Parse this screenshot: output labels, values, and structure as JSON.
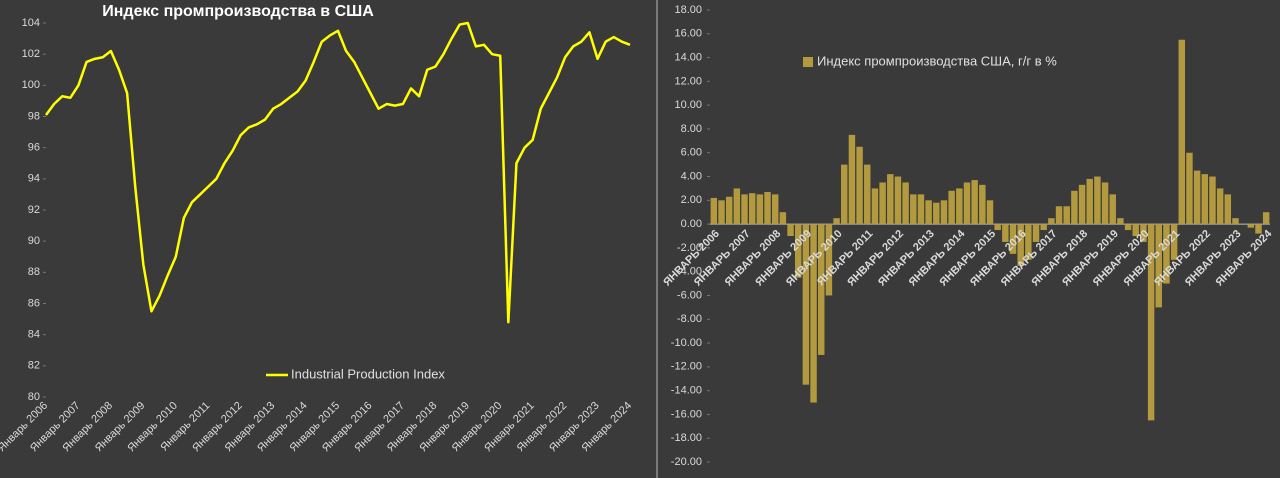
{
  "chart_data": [
    {
      "type": "line",
      "title": "Индекс промпроизводства в США",
      "categories": [
        "Январь 2006",
        null,
        null,
        null,
        "Январь 2007",
        null,
        null,
        null,
        "Январь 2008",
        null,
        null,
        null,
        "Январь 2009",
        null,
        null,
        null,
        "Январь 2010",
        null,
        null,
        null,
        "Январь 2011",
        null,
        null,
        null,
        "Январь 2012",
        null,
        null,
        null,
        "Январь 2013",
        null,
        null,
        null,
        "Январь 2014",
        null,
        null,
        null,
        "Январь 2015",
        null,
        null,
        null,
        "Январь 2016",
        null,
        null,
        null,
        "Январь 2017",
        null,
        null,
        null,
        "Январь 2018",
        null,
        null,
        null,
        "Январь 2019",
        null,
        null,
        null,
        "Январь 2020",
        null,
        null,
        null,
        "Январь 2021",
        null,
        null,
        null,
        "Январь 2022",
        null,
        null,
        null,
        "Январь 2023",
        null,
        null,
        null,
        "Январь 2024"
      ],
      "series": [
        {
          "name": "Industrial Production Index",
          "color": "#ffff00",
          "values": [
            98.1,
            98.8,
            99.3,
            99.2,
            100.0,
            101.5,
            101.7,
            101.8,
            102.2,
            101.0,
            99.5,
            93.5,
            88.5,
            85.5,
            86.5,
            87.8,
            89.0,
            91.5,
            92.5,
            93.0,
            93.5,
            94.0,
            95.0,
            95.8,
            96.8,
            97.3,
            97.5,
            97.8,
            98.5,
            98.8,
            99.2,
            99.6,
            100.3,
            101.5,
            102.8,
            103.2,
            103.5,
            102.2,
            101.5,
            100.5,
            99.5,
            98.5,
            98.8,
            98.7,
            98.8,
            99.8,
            99.3,
            101.0,
            101.2,
            102.0,
            103.0,
            103.9,
            104.0,
            102.5,
            102.6,
            102.0,
            101.9,
            84.8,
            95.0,
            96.0,
            96.5,
            98.5,
            99.5,
            100.5,
            101.8,
            102.5,
            102.8,
            103.4,
            101.7,
            102.8,
            103.1,
            102.8,
            102.6
          ]
        }
      ],
      "ylim": [
        80,
        104
      ],
      "yticks": [
        80,
        82,
        84,
        86,
        88,
        90,
        92,
        94,
        96,
        98,
        100,
        102,
        104
      ],
      "legend": "bottom"
    },
    {
      "type": "bar",
      "categories": [
        "ЯНВАРЬ 2006",
        null,
        null,
        null,
        "ЯНВАРЬ 2007",
        null,
        null,
        null,
        "ЯНВАРЬ 2008",
        null,
        null,
        null,
        "ЯНВАРЬ 2009",
        null,
        null,
        null,
        "ЯНВАРЬ 2010",
        null,
        null,
        null,
        "ЯНВАРЬ 2011",
        null,
        null,
        null,
        "ЯНВАРЬ 2012",
        null,
        null,
        null,
        "ЯНВАРЬ 2013",
        null,
        null,
        null,
        "ЯНВАРЬ 2014",
        null,
        null,
        null,
        "ЯНВАРЬ 2015",
        null,
        null,
        null,
        "ЯНВАРЬ 2016",
        null,
        null,
        null,
        "ЯНВАРЬ 2017",
        null,
        null,
        null,
        "ЯНВАРЬ 2018",
        null,
        null,
        null,
        "ЯНВАРЬ 2019",
        null,
        null,
        null,
        "ЯНВАРЬ 2020",
        null,
        null,
        null,
        "ЯНВАРЬ 2021",
        null,
        null,
        null,
        "ЯНВАРЬ 2022",
        null,
        null,
        null,
        "ЯНВАРЬ 2023",
        null,
        null,
        null,
        "ЯНВАРЬ 2024"
      ],
      "series": [
        {
          "name": "Индекс промпроизводства США, г/г в %",
          "color": "#b39a3e",
          "values": [
            2.2,
            2.0,
            2.3,
            3.0,
            2.5,
            2.6,
            2.5,
            2.7,
            2.5,
            1.0,
            -1.0,
            -4.5,
            -13.5,
            -15.0,
            -11.0,
            -6.0,
            0.5,
            5.0,
            7.5,
            6.5,
            5.0,
            3.0,
            3.5,
            4.2,
            4.0,
            3.5,
            2.5,
            2.5,
            2.0,
            1.8,
            2.0,
            2.8,
            3.0,
            3.5,
            3.7,
            3.3,
            2.0,
            -0.5,
            -1.5,
            -2.5,
            -3.5,
            -3.0,
            -1.5,
            -0.5,
            0.5,
            1.5,
            1.5,
            2.8,
            3.3,
            3.8,
            4.0,
            3.5,
            2.5,
            0.5,
            -0.5,
            -1.0,
            -1.5,
            -16.5,
            -7.0,
            -5.0,
            -3.0,
            15.5,
            6.0,
            4.5,
            4.2,
            4.0,
            3.0,
            2.5,
            0.5,
            0.0,
            -0.3,
            -0.8,
            1.0
          ]
        }
      ],
      "ylim": [
        -20,
        18
      ],
      "yticks": [
        {
          "value": -20,
          "label": "-20.00"
        },
        {
          "value": -18,
          "label": "-18.00"
        },
        {
          "value": -16,
          "label": "-16.00"
        },
        {
          "value": -14,
          "label": "-14.00"
        },
        {
          "value": -12,
          "label": "-12.00"
        },
        {
          "value": -10,
          "label": "-10.00"
        },
        {
          "value": -8,
          "label": "-8.00"
        },
        {
          "value": -6,
          "label": "-6.00"
        },
        {
          "value": -4,
          "label": "-4.00"
        },
        {
          "value": -2,
          "label": "-2.00"
        },
        {
          "value": 0,
          "label": "0.00"
        },
        {
          "value": 2,
          "label": "2.00"
        },
        {
          "value": 4,
          "label": "4.00"
        },
        {
          "value": 6,
          "label": "6.00"
        },
        {
          "value": 8,
          "label": "8.00"
        },
        {
          "value": 10,
          "label": "10.00"
        },
        {
          "value": 12,
          "label": "12.00"
        },
        {
          "value": 14,
          "label": "14.00"
        },
        {
          "value": 16,
          "label": "16.00"
        },
        {
          "value": 18,
          "label": "18.00"
        }
      ],
      "legend": "top"
    }
  ]
}
